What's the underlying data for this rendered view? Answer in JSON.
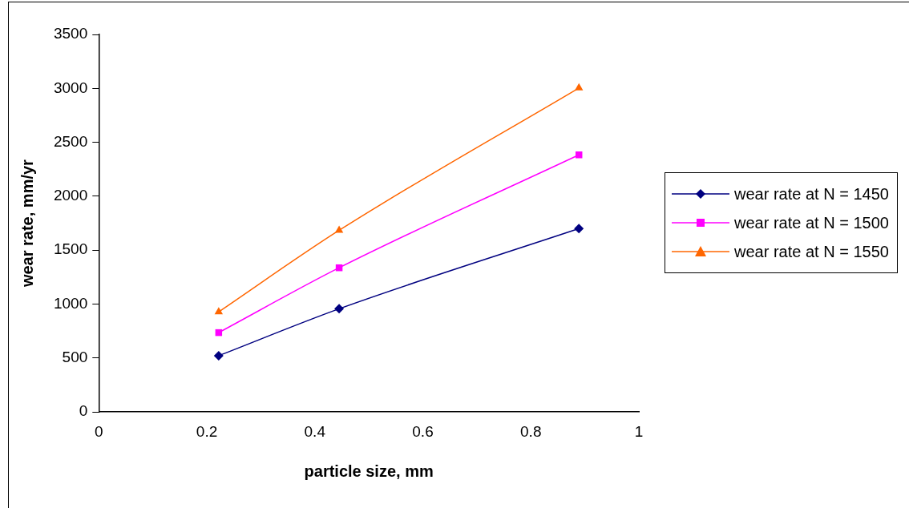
{
  "chart_data": {
    "type": "line",
    "xlabel": "particle size, mm",
    "ylabel": "wear rate, mm/yr",
    "x": [
      0.222,
      0.445,
      0.889
    ],
    "series": [
      {
        "name": "wear rate at N = 1450",
        "color": "#000080",
        "marker": "diamond",
        "values": [
          522,
          957,
          1700
        ]
      },
      {
        "name": "wear rate at N = 1500",
        "color": "#ff00ff",
        "marker": "square",
        "values": [
          736,
          1337,
          2384
        ]
      },
      {
        "name": "wear rate at N = 1550",
        "color": "#ff6600",
        "marker": "triangle",
        "values": [
          928,
          1684,
          3004
        ]
      }
    ],
    "xlim": [
      0,
      1
    ],
    "xticks": [
      0,
      0.2,
      0.4,
      0.6,
      0.8,
      1
    ],
    "ylim": [
      0,
      3500
    ],
    "yticks": [
      0,
      500,
      1000,
      1500,
      2000,
      2500,
      3000,
      3500
    ],
    "grid": false,
    "legend": "right",
    "line_style": "solid"
  }
}
